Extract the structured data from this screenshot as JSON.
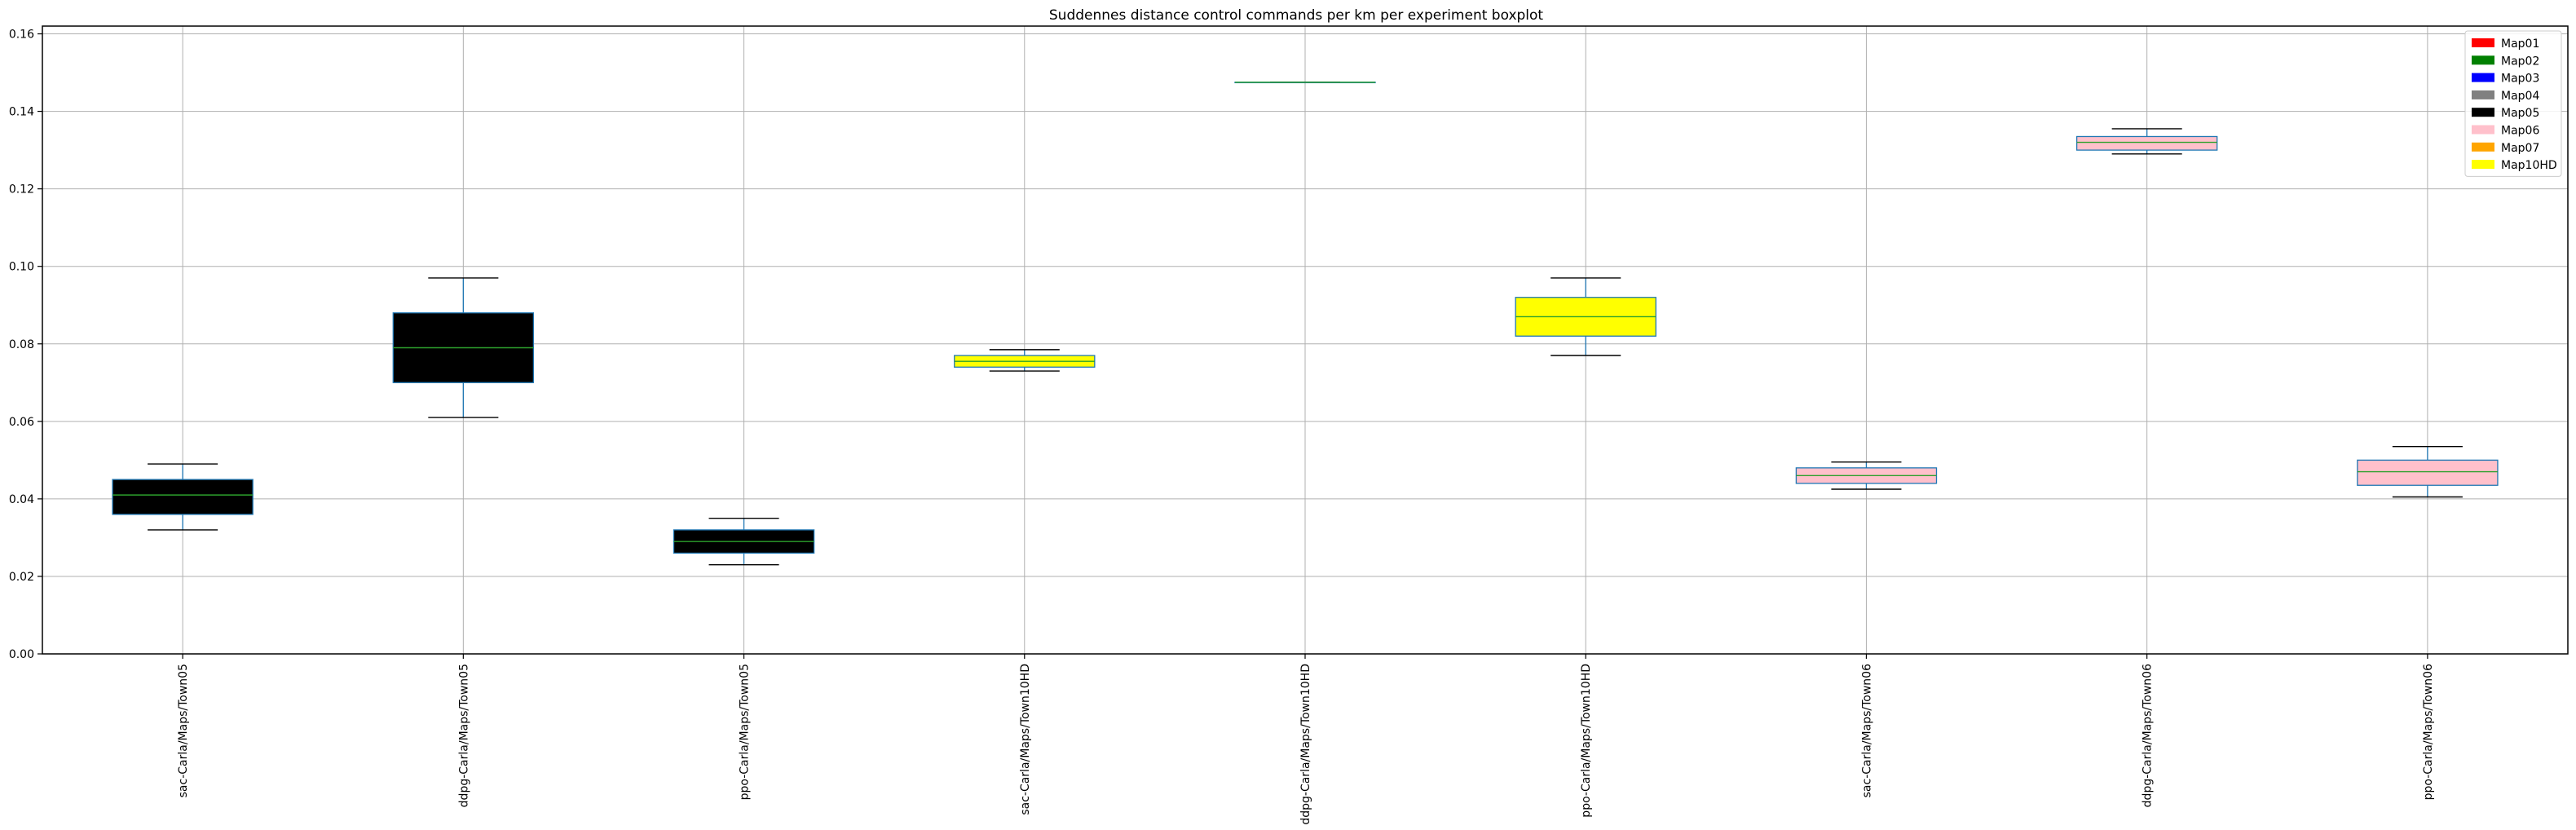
{
  "chart_data": {
    "type": "boxplot",
    "title": "Suddennes distance control commands per km per experiment boxplot",
    "xlabel": "",
    "ylabel": "",
    "ylim": [
      0,
      0.162
    ],
    "yticks": [
      0.0,
      0.02,
      0.04,
      0.06,
      0.08,
      0.1,
      0.12,
      0.14,
      0.16
    ],
    "ytick_labels": [
      "0.00",
      "0.02",
      "0.04",
      "0.06",
      "0.08",
      "0.10",
      "0.12",
      "0.14",
      "0.16"
    ],
    "grid": true,
    "legend_position": "top-right",
    "legend": [
      {
        "label": "Map01",
        "color": "#ff0000"
      },
      {
        "label": "Map02",
        "color": "#008000"
      },
      {
        "label": "Map03",
        "color": "#0000ff"
      },
      {
        "label": "Map04",
        "color": "#808080"
      },
      {
        "label": "Map05",
        "color": "#000000"
      },
      {
        "label": "Map06",
        "color": "#ffc0cb"
      },
      {
        "label": "Map07",
        "color": "#ffa500"
      },
      {
        "label": "Map10HD",
        "color": "#ffff00"
      }
    ],
    "boxes": [
      {
        "label": "sac-Carla/Maps/Town05",
        "color": "#000000",
        "whislo": 0.032,
        "q1": 0.036,
        "med": 0.041,
        "q3": 0.045,
        "whishi": 0.049
      },
      {
        "label": "ddpg-Carla/Maps/Town05",
        "color": "#000000",
        "whislo": 0.061,
        "q1": 0.07,
        "med": 0.079,
        "q3": 0.088,
        "whishi": 0.097
      },
      {
        "label": "ppo-Carla/Maps/Town05",
        "color": "#000000",
        "whislo": 0.023,
        "q1": 0.026,
        "med": 0.029,
        "q3": 0.032,
        "whishi": 0.035
      },
      {
        "label": "sac-Carla/Maps/Town10HD",
        "color": "#ffff00",
        "whislo": 0.073,
        "q1": 0.074,
        "med": 0.0755,
        "q3": 0.077,
        "whishi": 0.0785
      },
      {
        "label": "ddpg-Carla/Maps/Town10HD",
        "color": "#ffff00",
        "whislo": 0.1475,
        "q1": 0.1475,
        "med": 0.1475,
        "q3": 0.1475,
        "whishi": 0.1475
      },
      {
        "label": "ppo-Carla/Maps/Town10HD",
        "color": "#ffff00",
        "whislo": 0.077,
        "q1": 0.082,
        "med": 0.087,
        "q3": 0.092,
        "whishi": 0.097
      },
      {
        "label": "sac-Carla/Maps/Town06",
        "color": "#ffc0cb",
        "whislo": 0.0425,
        "q1": 0.044,
        "med": 0.046,
        "q3": 0.048,
        "whishi": 0.0495
      },
      {
        "label": "ddpg-Carla/Maps/Town06",
        "color": "#ffc0cb",
        "whislo": 0.129,
        "q1": 0.13,
        "med": 0.132,
        "q3": 0.1335,
        "whishi": 0.1355
      },
      {
        "label": "ppo-Carla/Maps/Town06",
        "color": "#ffc0cb",
        "whislo": 0.0405,
        "q1": 0.0435,
        "med": 0.047,
        "q3": 0.05,
        "whishi": 0.0535
      }
    ]
  }
}
